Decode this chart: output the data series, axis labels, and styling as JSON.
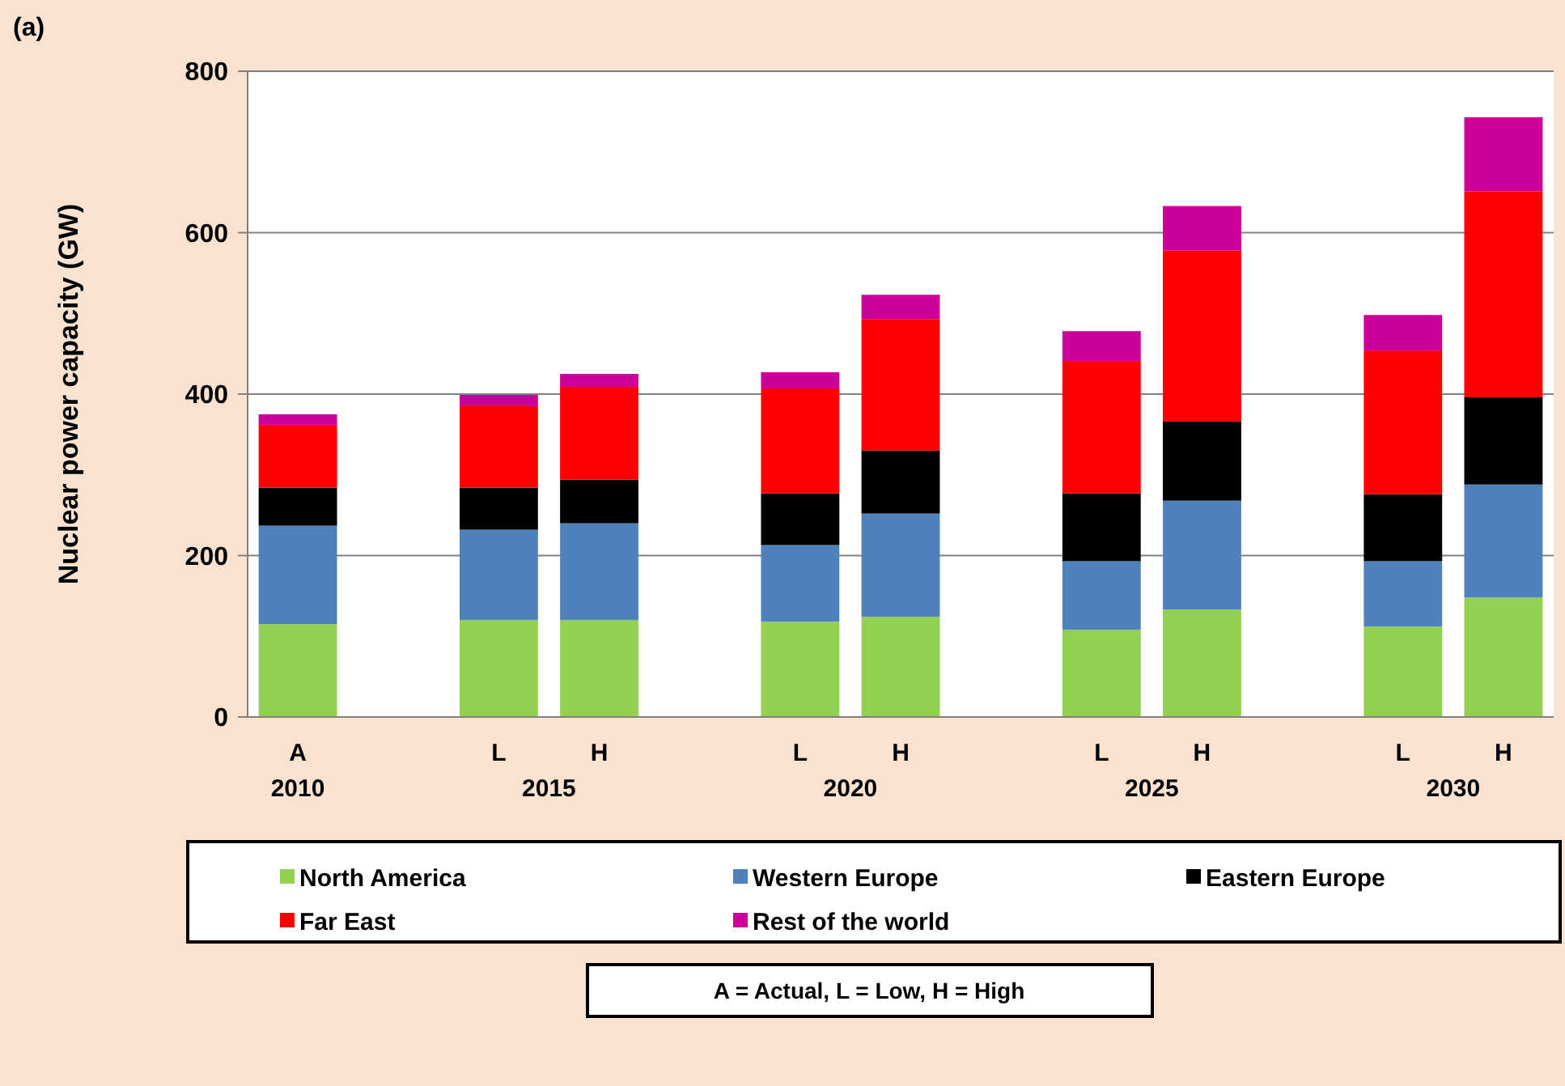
{
  "chart_data": {
    "type": "bar",
    "title": "(a)",
    "ylabel": "Nuclear power capacity (GW)",
    "stacked": true,
    "categories": [
      "A",
      null,
      "L",
      "H",
      null,
      "L",
      "H",
      null,
      "L",
      "H",
      null,
      "L",
      "H"
    ],
    "series": [
      {
        "name": "North America",
        "color": "#92d050",
        "values": [
          115,
          null,
          120,
          120,
          null,
          118,
          124,
          null,
          108,
          133,
          null,
          112,
          148
        ]
      },
      {
        "name": "Western Europe",
        "color": "#4f81bd",
        "values": [
          122,
          null,
          112,
          120,
          null,
          95,
          128,
          null,
          85,
          135,
          null,
          81,
          140
        ]
      },
      {
        "name": "Eastern Europe",
        "color": "#000000",
        "values": [
          47,
          null,
          52,
          54,
          null,
          64,
          78,
          null,
          84,
          98,
          null,
          83,
          108
        ]
      },
      {
        "name": "Far East",
        "color": "#ff0000",
        "values": [
          78,
          null,
          101,
          115,
          null,
          130,
          163,
          null,
          164,
          212,
          null,
          178,
          255
        ]
      },
      {
        "name": "Rest of the world",
        "color": "#cc0099",
        "values": [
          13,
          null,
          14,
          16,
          null,
          20,
          30,
          null,
          37,
          55,
          null,
          44,
          92
        ]
      }
    ],
    "ylim": [
      0,
      800
    ],
    "yticks": [
      0,
      200,
      400,
      600,
      800
    ],
    "grid": "y",
    "legend": "bottom",
    "annotations": [
      "2010",
      "2015",
      "2020",
      "2025",
      "2030",
      "A = Actual, L = Low, H = High"
    ]
  }
}
